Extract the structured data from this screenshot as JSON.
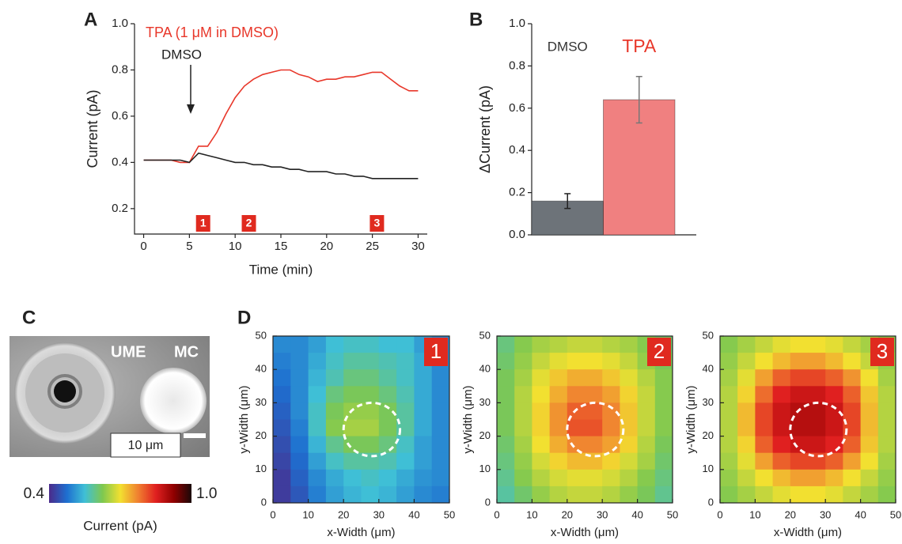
{
  "chart_data": [
    {
      "type": "line",
      "panel": "A",
      "xlabel": "Time (min)",
      "ylabel": "Current (pA)",
      "x": [
        0,
        1,
        2,
        3,
        4,
        5,
        6,
        7,
        8,
        9,
        10,
        11,
        12,
        13,
        14,
        15,
        16,
        17,
        18,
        19,
        20,
        21,
        22,
        23,
        24,
        25,
        26,
        27,
        28,
        29,
        30
      ],
      "series": [
        {
          "name": "TPA",
          "color": "#e8372a",
          "values": [
            0.41,
            0.41,
            0.41,
            0.41,
            0.4,
            0.4,
            0.47,
            0.47,
            0.53,
            0.61,
            0.68,
            0.73,
            0.76,
            0.78,
            0.79,
            0.8,
            0.8,
            0.78,
            0.77,
            0.75,
            0.76,
            0.76,
            0.77,
            0.77,
            0.78,
            0.79,
            0.79,
            0.76,
            0.73,
            0.71,
            0.71
          ]
        },
        {
          "name": "DMSO",
          "color": "#222222",
          "values": [
            0.41,
            0.41,
            0.41,
            0.41,
            0.41,
            0.4,
            0.44,
            0.43,
            0.42,
            0.41,
            0.4,
            0.4,
            0.39,
            0.39,
            0.38,
            0.38,
            0.37,
            0.37,
            0.36,
            0.36,
            0.36,
            0.35,
            0.35,
            0.34,
            0.34,
            0.33,
            0.33,
            0.33,
            0.33,
            0.33,
            0.33
          ]
        }
      ],
      "annotations": [
        {
          "text": "TPA (1 μM in DMSO)",
          "color": "#e8372a"
        },
        {
          "text": "DMSO",
          "color": "#222222"
        }
      ],
      "markers": [
        {
          "x": 6.5,
          "label": "1"
        },
        {
          "x": 11.5,
          "label": "2"
        },
        {
          "x": 25.5,
          "label": "3"
        }
      ],
      "xlim": [
        -1,
        31
      ],
      "xticks": [
        0,
        5,
        10,
        15,
        20,
        25,
        30
      ],
      "ylim": [
        0.09,
        1.0
      ],
      "yticks": [
        0.2,
        0.4,
        0.6,
        0.8,
        {
          "value": 1,
          "label": "1.0"
        }
      ]
    },
    {
      "type": "bar",
      "panel": "B",
      "ylabel": "ΔCurrent (pA)",
      "categories": [
        "DMSO",
        "TPA"
      ],
      "category_colors": [
        "#333333",
        "#e8372a"
      ],
      "values": [
        0.16,
        0.64
      ],
      "errors": [
        0.035,
        0.11
      ],
      "colors": [
        "#6d7379",
        "#f08080"
      ],
      "ylim": [
        0,
        1
      ],
      "yticks": [
        {
          "value": 0,
          "label": "0.0"
        },
        0.2,
        0.4,
        0.6,
        0.8,
        {
          "value": 1,
          "label": "1.0"
        }
      ]
    },
    {
      "type": "heatmap",
      "panel": "D",
      "badge": "1",
      "xlabel": "x-Width (μm)",
      "ylabel": "y-Width (μm)",
      "x": [
        2.5,
        7.5,
        12.5,
        17.5,
        22.5,
        27.5,
        32.5,
        37.5,
        42.5,
        47.5
      ],
      "y": [
        47.5,
        42.5,
        37.5,
        32.5,
        27.5,
        22.5,
        17.5,
        12.5,
        7.5,
        2.5
      ],
      "z": [
        [
          0.5,
          0.5,
          0.52,
          0.55,
          0.56,
          0.56,
          0.55,
          0.55,
          0.52,
          0.5
        ],
        [
          0.49,
          0.5,
          0.53,
          0.56,
          0.58,
          0.58,
          0.57,
          0.56,
          0.53,
          0.5
        ],
        [
          0.48,
          0.5,
          0.54,
          0.57,
          0.6,
          0.6,
          0.58,
          0.56,
          0.53,
          0.5
        ],
        [
          0.47,
          0.5,
          0.55,
          0.6,
          0.62,
          0.62,
          0.6,
          0.57,
          0.53,
          0.5
        ],
        [
          0.46,
          0.5,
          0.56,
          0.62,
          0.64,
          0.64,
          0.62,
          0.58,
          0.53,
          0.5
        ],
        [
          0.45,
          0.49,
          0.56,
          0.63,
          0.65,
          0.65,
          0.62,
          0.58,
          0.53,
          0.5
        ],
        [
          0.44,
          0.48,
          0.54,
          0.59,
          0.62,
          0.62,
          0.6,
          0.56,
          0.52,
          0.5
        ],
        [
          0.43,
          0.47,
          0.52,
          0.56,
          0.58,
          0.58,
          0.57,
          0.55,
          0.52,
          0.5
        ],
        [
          0.42,
          0.46,
          0.5,
          0.53,
          0.55,
          0.56,
          0.55,
          0.53,
          0.51,
          0.5
        ],
        [
          0.42,
          0.45,
          0.49,
          0.52,
          0.54,
          0.55,
          0.54,
          0.52,
          0.5,
          0.49
        ]
      ],
      "roi": {
        "cx": 28,
        "cy": 22,
        "r": 8
      },
      "xlim": [
        0,
        50
      ],
      "xticks": [
        0,
        10,
        20,
        30,
        40,
        50
      ],
      "ylim": [
        0,
        50
      ],
      "yticks": [
        0,
        10,
        20,
        30,
        40,
        50
      ]
    },
    {
      "type": "heatmap",
      "badge": "2",
      "xlabel": "x-Width (μm)",
      "ylabel": "y-Width (μm)",
      "x": [
        2.5,
        7.5,
        12.5,
        17.5,
        22.5,
        27.5,
        32.5,
        37.5,
        42.5,
        47.5
      ],
      "y": [
        47.5,
        42.5,
        37.5,
        32.5,
        27.5,
        22.5,
        17.5,
        12.5,
        7.5,
        2.5
      ],
      "z": [
        [
          0.6,
          0.63,
          0.65,
          0.66,
          0.67,
          0.67,
          0.66,
          0.65,
          0.63,
          0.61
        ],
        [
          0.61,
          0.64,
          0.67,
          0.69,
          0.7,
          0.7,
          0.69,
          0.67,
          0.64,
          0.62
        ],
        [
          0.62,
          0.65,
          0.69,
          0.72,
          0.74,
          0.74,
          0.72,
          0.69,
          0.66,
          0.63
        ],
        [
          0.62,
          0.66,
          0.7,
          0.74,
          0.77,
          0.77,
          0.75,
          0.71,
          0.67,
          0.63
        ],
        [
          0.62,
          0.66,
          0.71,
          0.76,
          0.8,
          0.8,
          0.77,
          0.72,
          0.67,
          0.63
        ],
        [
          0.62,
          0.66,
          0.71,
          0.76,
          0.81,
          0.81,
          0.77,
          0.72,
          0.67,
          0.63
        ],
        [
          0.61,
          0.65,
          0.7,
          0.74,
          0.77,
          0.77,
          0.75,
          0.71,
          0.66,
          0.62
        ],
        [
          0.6,
          0.64,
          0.68,
          0.71,
          0.73,
          0.73,
          0.71,
          0.68,
          0.65,
          0.61
        ],
        [
          0.59,
          0.63,
          0.66,
          0.68,
          0.69,
          0.69,
          0.68,
          0.66,
          0.63,
          0.6
        ],
        [
          0.58,
          0.61,
          0.64,
          0.66,
          0.67,
          0.67,
          0.66,
          0.64,
          0.62,
          0.59
        ]
      ],
      "roi": {
        "cx": 28,
        "cy": 22,
        "r": 8
      },
      "xlim": [
        0,
        50
      ],
      "xticks": [
        0,
        10,
        20,
        30,
        40,
        50
      ],
      "ylim": [
        0,
        50
      ],
      "yticks": [
        0,
        10,
        20,
        30,
        40,
        50
      ]
    },
    {
      "type": "heatmap",
      "badge": "3",
      "xlabel": "x-Width (μm)",
      "ylabel": "y-Width (μm)",
      "x": [
        2.5,
        7.5,
        12.5,
        17.5,
        22.5,
        27.5,
        32.5,
        37.5,
        42.5,
        47.5
      ],
      "y": [
        47.5,
        42.5,
        37.5,
        32.5,
        27.5,
        22.5,
        17.5,
        12.5,
        7.5,
        2.5
      ],
      "z": [
        [
          0.63,
          0.65,
          0.67,
          0.69,
          0.7,
          0.7,
          0.69,
          0.67,
          0.65,
          0.63
        ],
        [
          0.64,
          0.67,
          0.7,
          0.73,
          0.75,
          0.75,
          0.73,
          0.7,
          0.67,
          0.64
        ],
        [
          0.65,
          0.69,
          0.75,
          0.8,
          0.82,
          0.82,
          0.8,
          0.76,
          0.7,
          0.65
        ],
        [
          0.66,
          0.71,
          0.79,
          0.85,
          0.87,
          0.87,
          0.85,
          0.8,
          0.72,
          0.66
        ],
        [
          0.66,
          0.73,
          0.82,
          0.87,
          0.89,
          0.89,
          0.87,
          0.82,
          0.73,
          0.66
        ],
        [
          0.66,
          0.73,
          0.82,
          0.87,
          0.89,
          0.89,
          0.87,
          0.82,
          0.73,
          0.66
        ],
        [
          0.66,
          0.71,
          0.8,
          0.85,
          0.87,
          0.87,
          0.85,
          0.8,
          0.72,
          0.66
        ],
        [
          0.65,
          0.69,
          0.75,
          0.8,
          0.82,
          0.82,
          0.8,
          0.75,
          0.7,
          0.65
        ],
        [
          0.64,
          0.67,
          0.7,
          0.73,
          0.75,
          0.75,
          0.73,
          0.7,
          0.67,
          0.64
        ],
        [
          0.63,
          0.65,
          0.67,
          0.69,
          0.7,
          0.7,
          0.69,
          0.67,
          0.65,
          0.63
        ]
      ],
      "roi": {
        "cx": 28,
        "cy": 22,
        "r": 8
      },
      "xlim": [
        0,
        50
      ],
      "xticks": [
        0,
        10,
        20,
        30,
        40,
        50
      ],
      "ylim": [
        0,
        50
      ],
      "yticks": [
        0,
        10,
        20,
        30,
        40,
        50
      ]
    }
  ],
  "photo": {
    "panel": "C",
    "labels": [
      "UME",
      "MC"
    ],
    "scale_bar": "10 μm"
  },
  "colorbar": {
    "ticks": [
      0.4,
      {
        "value": 1,
        "label": "1.0"
      }
    ],
    "title": "Current (pA)"
  }
}
